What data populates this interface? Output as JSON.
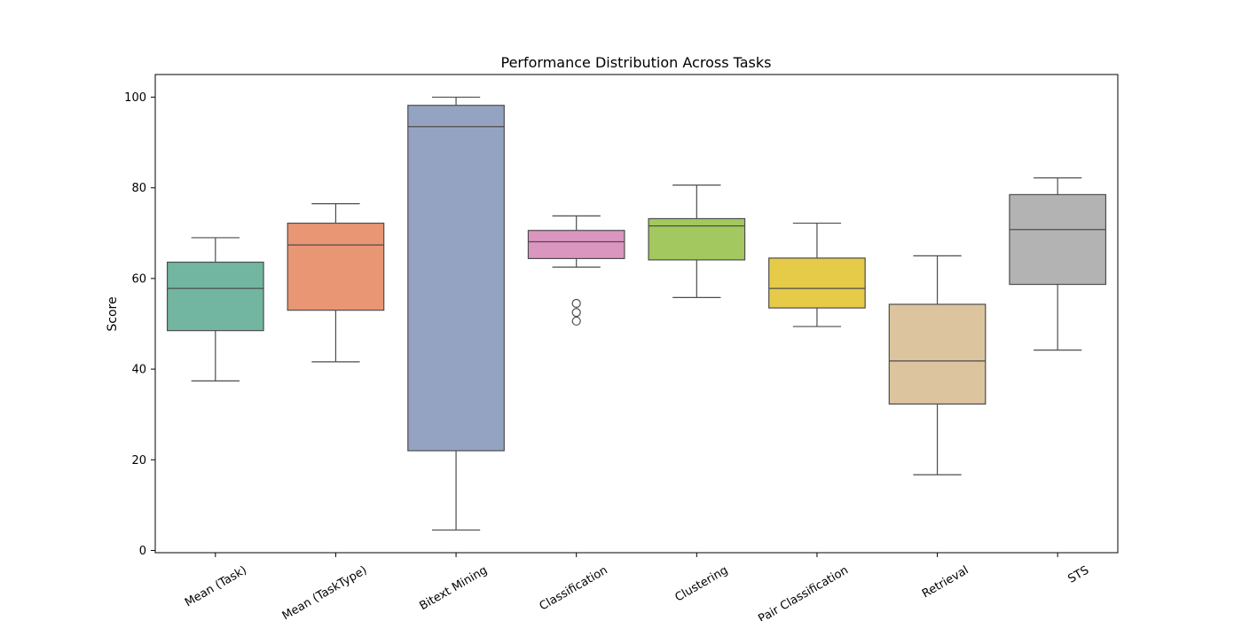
{
  "chart_data": {
    "type": "box",
    "title": "Performance Distribution Across Tasks",
    "xlabel": "",
    "ylabel": "Score",
    "ylim": [
      -0.5,
      105
    ],
    "yticks": [
      0,
      20,
      40,
      60,
      80,
      100
    ],
    "grid": false,
    "categories": [
      "Mean (Task)",
      "Mean (TaskType)",
      "Bitext Mining",
      "Classification",
      "Clustering",
      "Pair Classification",
      "Retrieval",
      "STS"
    ],
    "colors": [
      "#72b6a1",
      "#e99675",
      "#95a3c3",
      "#db96c0",
      "#a3c85f",
      "#e5cb48",
      "#dbc49e",
      "#b3b3b3"
    ],
    "boxes": [
      {
        "whisker_low": 37.4,
        "q1": 48.5,
        "median": 57.8,
        "q3": 63.6,
        "whisker_high": 69.0,
        "outliers": []
      },
      {
        "whisker_low": 41.6,
        "q1": 53.0,
        "median": 67.4,
        "q3": 72.2,
        "whisker_high": 76.5,
        "outliers": []
      },
      {
        "whisker_low": 4.5,
        "q1": 22.0,
        "median": 93.5,
        "q3": 98.2,
        "whisker_high": 100.0,
        "outliers": []
      },
      {
        "whisker_low": 62.5,
        "q1": 64.4,
        "median": 68.1,
        "q3": 70.6,
        "whisker_high": 73.8,
        "outliers": [
          54.5,
          52.5,
          50.6
        ]
      },
      {
        "whisker_low": 55.8,
        "q1": 64.1,
        "median": 71.6,
        "q3": 73.2,
        "whisker_high": 80.6,
        "outliers": []
      },
      {
        "whisker_low": 49.4,
        "q1": 53.5,
        "median": 57.8,
        "q3": 64.5,
        "whisker_high": 72.2,
        "outliers": []
      },
      {
        "whisker_low": 16.7,
        "q1": 32.3,
        "median": 41.8,
        "q3": 54.3,
        "whisker_high": 65.0,
        "outliers": []
      },
      {
        "whisker_low": 44.2,
        "q1": 58.7,
        "median": 70.8,
        "q3": 78.5,
        "whisker_high": 82.2,
        "outliers": []
      }
    ]
  }
}
